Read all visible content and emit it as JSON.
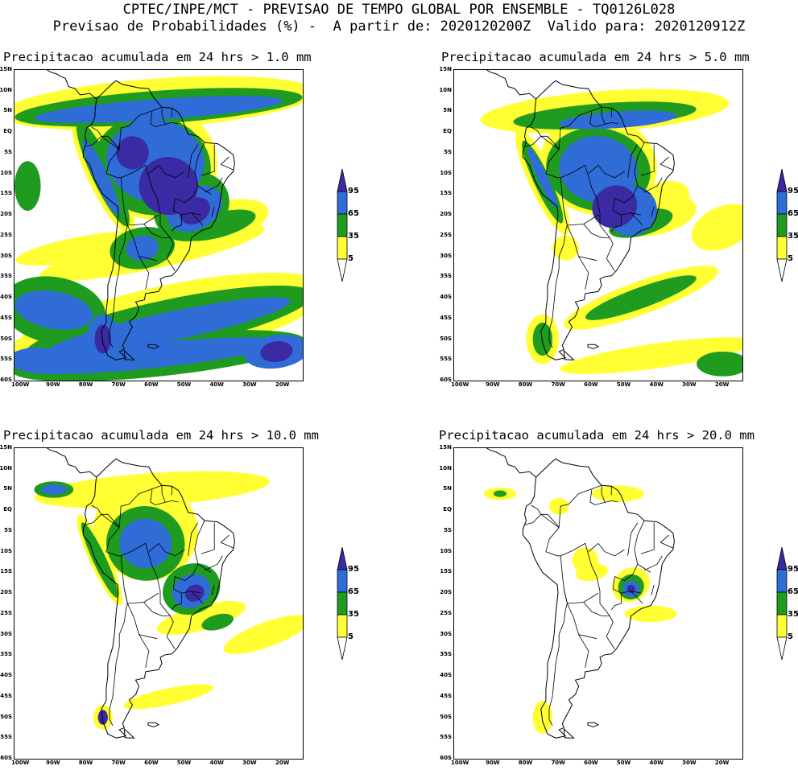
{
  "header": {
    "line1": "CPTEC/INPE/MCT - PREVISAO DE TEMPO GLOBAL POR ENSEMBLE - TQ0126L028",
    "line2": "Previsao de Probabilidades (%) -  A partir de: 2020120200Z  Valido para: 2020120912Z"
  },
  "colors": {
    "yellow": "#ffff33",
    "green": "#1f9c1f",
    "blue": "#2f6cd6",
    "navy": "#3a2aa3",
    "border": "#000000"
  },
  "lat_labels": [
    "15N",
    "10N",
    "5N",
    "EQ",
    "5S",
    "10S",
    "15S",
    "20S",
    "25S",
    "30S",
    "35S",
    "40S",
    "45S",
    "50S",
    "55S",
    "60S"
  ],
  "lon_labels": [
    "100W",
    "90W",
    "80W",
    "70W",
    "60W",
    "50W",
    "40W",
    "30W",
    "20W"
  ],
  "legend_labels": [
    "95",
    "65",
    "35",
    "5"
  ],
  "panels": [
    {
      "title": "Precipitacao acumulada em 24 hrs > 1.0 mm",
      "coverage": "very-high"
    },
    {
      "title": "Precipitacao acumulada em 24 hrs > 5.0 mm",
      "coverage": "high"
    },
    {
      "title": "Precipitacao acumulada em 24 hrs > 10.0 mm",
      "coverage": "medium"
    },
    {
      "title": "Precipitacao acumulada em 24 hrs > 20.0 mm",
      "coverage": "low"
    }
  ]
}
